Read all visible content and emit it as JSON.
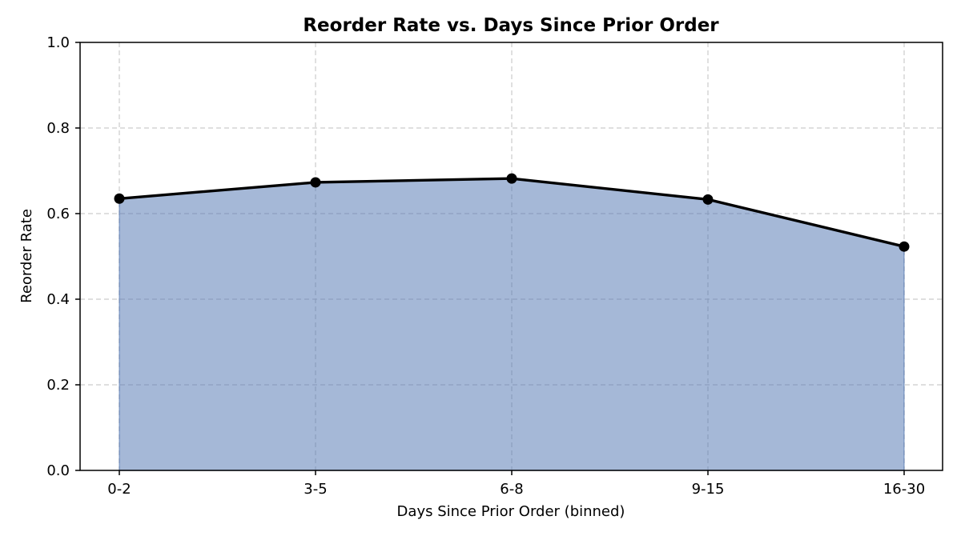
{
  "chart_data": {
    "type": "area",
    "title": "Reorder Rate vs. Days Since Prior Order",
    "xlabel": "Days Since Prior Order (binned)",
    "ylabel": "Reorder Rate",
    "categories": [
      "0-2",
      "3-5",
      "6-8",
      "9-15",
      "16-30"
    ],
    "series": [
      {
        "values": [
          0.635,
          0.673,
          0.682,
          0.633,
          0.523
        ]
      }
    ],
    "ylim": [
      0,
      1.0
    ],
    "yticks": [
      0.0,
      0.2,
      0.4,
      0.6,
      0.8,
      1.0
    ],
    "ytick_labels": [
      "0.0",
      "0.2",
      "0.4",
      "0.6",
      "0.8",
      "1.0"
    ],
    "grid": true,
    "markers": true,
    "colors": {
      "fill": "#4c72b0",
      "line": "#000000",
      "grid": "#cccccc"
    }
  }
}
